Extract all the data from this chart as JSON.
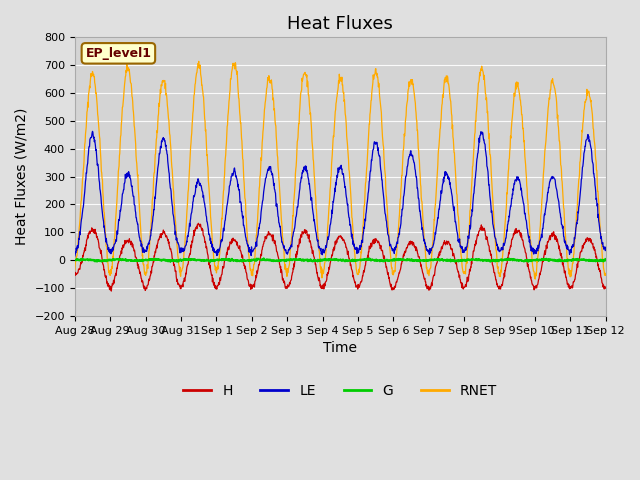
{
  "title": "Heat Fluxes",
  "xlabel": "Time",
  "ylabel": "Heat Fluxes (W/m2)",
  "ylim": [
    -200,
    800
  ],
  "yticks": [
    -200,
    -100,
    0,
    100,
    200,
    300,
    400,
    500,
    600,
    700,
    800
  ],
  "xtick_labels": [
    "Aug 28",
    "Aug 29",
    "Aug 30",
    "Aug 31",
    "Sep 1",
    "Sep 2",
    "Sep 3",
    "Sep 4",
    "Sep 5",
    "Sep 6",
    "Sep 7",
    "Sep 8",
    "Sep 9",
    "Sep 10",
    "Sep 11",
    "Sep 12"
  ],
  "legend_labels": [
    "H",
    "LE",
    "G",
    "RNET"
  ],
  "colors": {
    "H": "#cc0000",
    "LE": "#0000cc",
    "G": "#00cc00",
    "RNET": "#ffaa00"
  },
  "fig_bg_color": "#e0e0e0",
  "plot_bg_color": "#d4d4d4",
  "annotation_text": "EP_level1",
  "annotation_bg": "#ffffcc",
  "annotation_border": "#996600",
  "annotation_text_color": "#660000",
  "n_days": 15,
  "points_per_day": 96,
  "title_fontsize": 13,
  "axis_fontsize": 10,
  "tick_fontsize": 8,
  "legend_fontsize": 10
}
